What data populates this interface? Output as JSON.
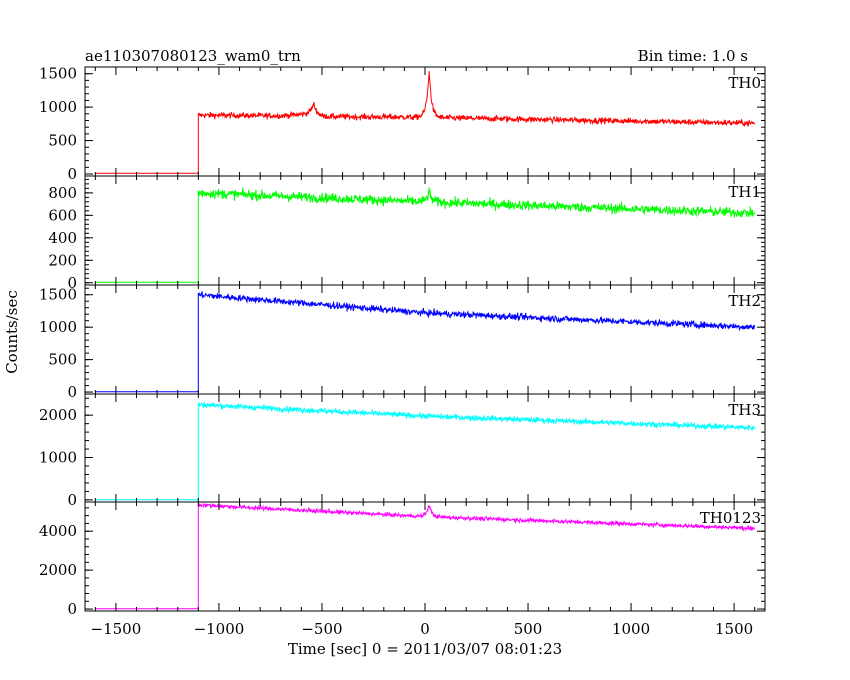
{
  "chart_data": {
    "type": "line",
    "title": "ae110307080123_wam0_trn",
    "subtitle": "Bin time: 1.0 s",
    "xlabel": "Time [sec] 0 = 2011/03/07 08:01:23",
    "ylabel": "Counts/sec",
    "xlim": [
      -1650,
      1650
    ],
    "x_ticks": [
      -1500,
      -1000,
      -500,
      0,
      500,
      1000,
      1500
    ],
    "x_tick_labels": [
      "−1500",
      "−1000",
      "−500",
      "0",
      "500",
      "1000",
      "1500"
    ],
    "grid": false,
    "panels": [
      {
        "name": "TH0",
        "color": "#ff0000",
        "ylim": [
          -30,
          1600
        ],
        "y_ticks": [
          0,
          500,
          1000,
          1500
        ],
        "y_tick_labels": [
          "0",
          "500",
          "1000",
          "1500"
        ],
        "baseline_before_onset": 10,
        "onset_time": -1100,
        "level_points": [
          [
            -1100,
            880
          ],
          [
            -700,
            870
          ],
          [
            -550,
            900
          ],
          [
            -500,
            860
          ],
          [
            -100,
            850
          ],
          [
            1600,
            760
          ]
        ],
        "noise": 30,
        "features": [
          {
            "x": 20,
            "peak": 1560,
            "width": 12
          },
          {
            "x": -540,
            "peak": 1050,
            "width": 15
          }
        ]
      },
      {
        "name": "TH1",
        "color": "#00ff00",
        "ylim": [
          -20,
          950
        ],
        "y_ticks": [
          0,
          200,
          400,
          600,
          800
        ],
        "y_tick_labels": [
          "0",
          "200",
          "400",
          "600",
          "800"
        ],
        "baseline_before_onset": 5,
        "onset_time": -1100,
        "level_points": [
          [
            -1100,
            800
          ],
          [
            0,
            720
          ],
          [
            1600,
            620
          ]
        ],
        "noise": 30,
        "features": [
          {
            "x": 20,
            "peak": 810,
            "width": 12
          }
        ]
      },
      {
        "name": "TH2",
        "color": "#0000ff",
        "ylim": [
          -30,
          1650
        ],
        "y_ticks": [
          0,
          500,
          1000,
          1500
        ],
        "y_tick_labels": [
          "0",
          "500",
          "1000",
          "1500"
        ],
        "baseline_before_onset": 5,
        "onset_time": -1100,
        "level_points": [
          [
            -1100,
            1500
          ],
          [
            0,
            1220
          ],
          [
            1600,
            1000
          ]
        ],
        "noise": 35,
        "features": []
      },
      {
        "name": "TH3",
        "color": "#00ffff",
        "ylim": [
          -50,
          2500
        ],
        "y_ticks": [
          0,
          1000,
          2000
        ],
        "y_tick_labels": [
          "0",
          "1000",
          "2000"
        ],
        "baseline_before_onset": 5,
        "onset_time": -1100,
        "level_points": [
          [
            -1100,
            2250
          ],
          [
            0,
            1980
          ],
          [
            1600,
            1700
          ]
        ],
        "noise": 45,
        "features": []
      },
      {
        "name": "TH0123",
        "color": "#ff00ff",
        "ylim": [
          -100,
          5500
        ],
        "y_ticks": [
          0,
          2000,
          4000
        ],
        "y_tick_labels": [
          "0",
          "2000",
          "4000"
        ],
        "baseline_before_onset": 20,
        "onset_time": -1100,
        "level_points": [
          [
            -1100,
            5350
          ],
          [
            0,
            4750
          ],
          [
            1600,
            4150
          ]
        ],
        "noise": 70,
        "features": [
          {
            "x": 20,
            "peak": 5400,
            "width": 12
          }
        ]
      }
    ]
  }
}
